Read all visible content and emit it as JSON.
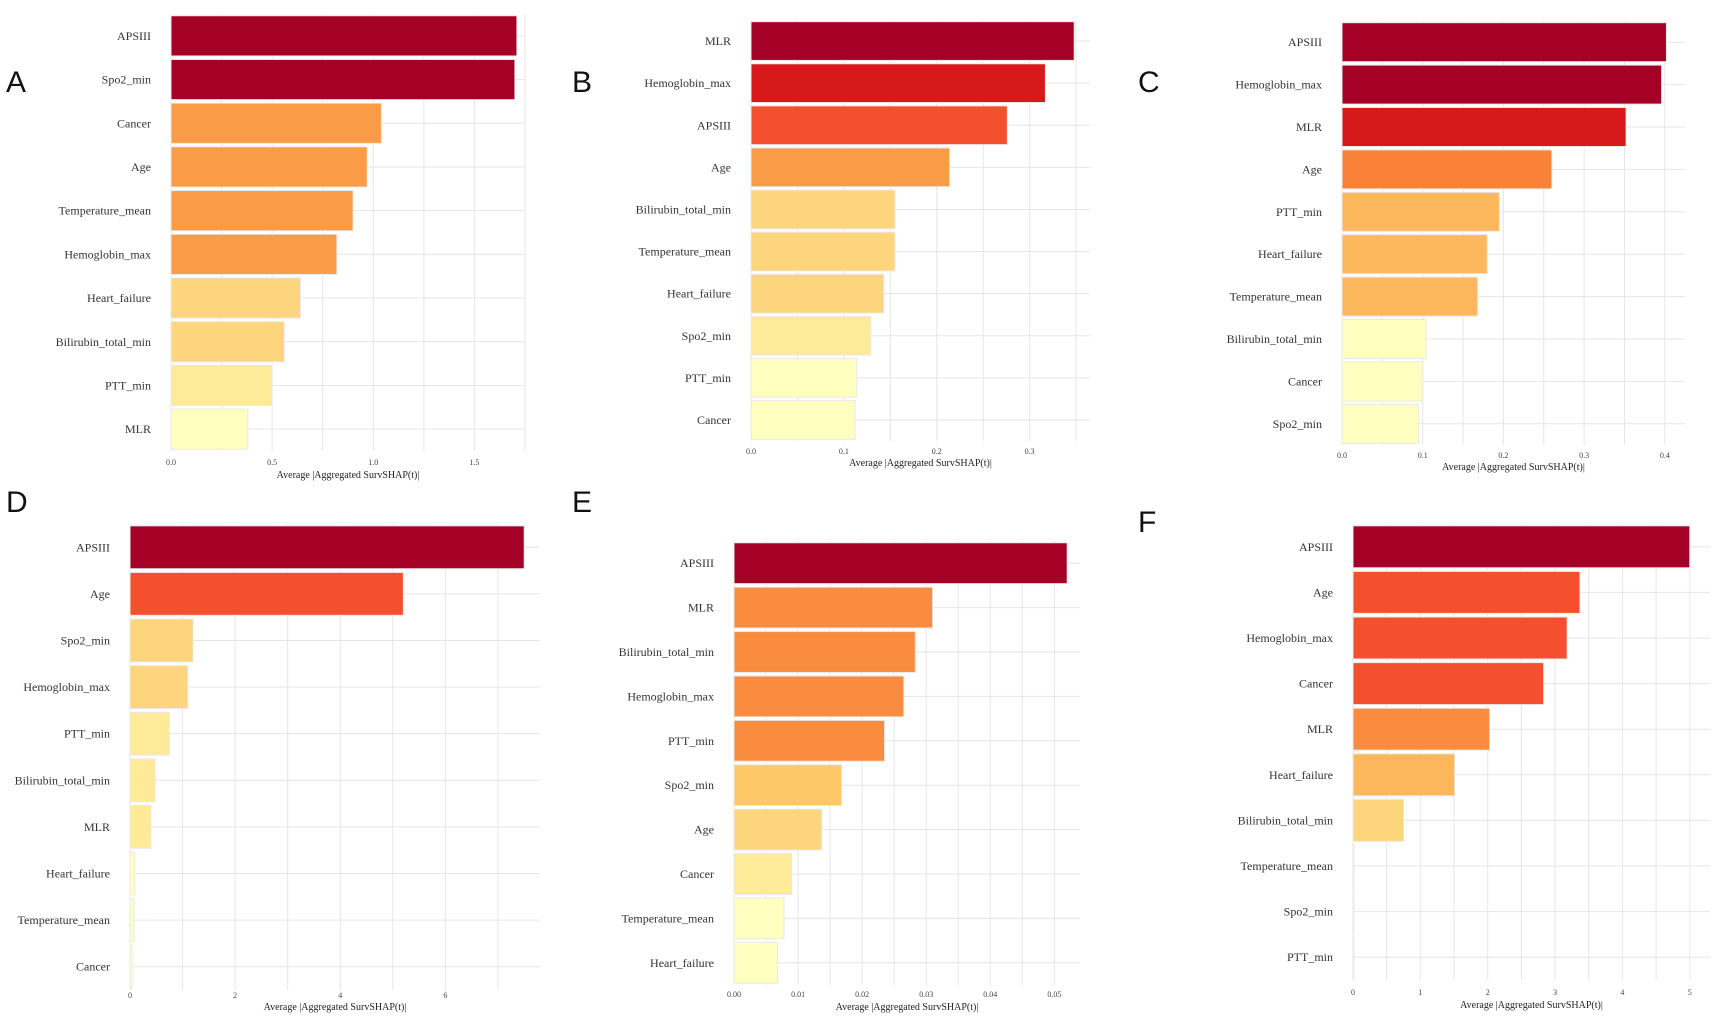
{
  "figure": {
    "panels": [
      "A",
      "B",
      "C",
      "D",
      "E",
      "F"
    ]
  },
  "chart_data": [
    {
      "type": "bar",
      "orientation": "horizontal",
      "panel": "A",
      "categories": [
        "APSIII",
        "Spo2_min",
        "Cancer",
        "Age",
        "Temperature_mean",
        "Hemoglobin_max",
        "Heart_failure",
        "Bilirubin_total_min",
        "PTT_min",
        "MLR"
      ],
      "values": [
        1.71,
        1.7,
        1.04,
        0.97,
        0.9,
        0.82,
        0.64,
        0.56,
        0.5,
        0.38
      ],
      "colors": [
        "#a50026",
        "#a50026",
        "#f99c45",
        "#f99c45",
        "#f99c45",
        "#f99c45",
        "#fdd57c",
        "#fdd57c",
        "#feea98",
        "#ffffbf"
      ],
      "xticks": [
        0.0,
        0.5,
        1.0,
        1.5
      ],
      "xtick_labels": [
        "0.0",
        "0.5",
        "1.0",
        "1.5"
      ],
      "xlim": [
        0,
        1.75
      ],
      "xlabel": "Average |Aggregated SurvSHAP(t)|",
      "ylabel": "",
      "grid": true
    },
    {
      "type": "bar",
      "orientation": "horizontal",
      "panel": "B",
      "categories": [
        "MLR",
        "Hemoglobin_max",
        "APSIII",
        "Age",
        "Bilirubin_total_min",
        "Temperature_mean",
        "Heart_failure",
        "Spo2_min",
        "PTT_min",
        "Cancer"
      ],
      "values": [
        0.348,
        0.317,
        0.276,
        0.214,
        0.155,
        0.155,
        0.143,
        0.129,
        0.114,
        0.112
      ],
      "colors": [
        "#a50026",
        "#d7191c",
        "#f4502f",
        "#f99c45",
        "#fdd57c",
        "#fdd57c",
        "#fdd57c",
        "#feea98",
        "#ffffbf",
        "#ffffbf"
      ],
      "xticks": [
        0.0,
        0.1,
        0.2,
        0.3
      ],
      "xtick_labels": [
        "0.0",
        "0.1",
        "0.2",
        "0.3"
      ],
      "xlim": [
        0,
        0.365
      ],
      "xlabel": "Average |Aggregated SurvSHAP(t)|",
      "ylabel": "",
      "grid": true
    },
    {
      "type": "bar",
      "orientation": "horizontal",
      "panel": "C",
      "categories": [
        "APSIII",
        "Hemoglobin_max",
        "MLR",
        "Age",
        "PTT_min",
        "Heart_failure",
        "Temperature_mean",
        "Bilirubin_total_min",
        "Cancer",
        "Spo2_min"
      ],
      "values": [
        0.402,
        0.396,
        0.352,
        0.26,
        0.195,
        0.18,
        0.168,
        0.104,
        0.1,
        0.095
      ],
      "colors": [
        "#a50026",
        "#a50026",
        "#d7191c",
        "#f98238",
        "#fdb75c",
        "#fdb75c",
        "#fdb75c",
        "#ffffbf",
        "#ffffbf",
        "#ffffbf"
      ],
      "xticks": [
        0.0,
        0.1,
        0.2,
        0.3,
        0.4
      ],
      "xtick_labels": [
        "0.0",
        "0.1",
        "0.2",
        "0.3",
        "0.4"
      ],
      "xlim": [
        0,
        0.425
      ],
      "xlabel": "Average |Aggregated SurvSHAP(t)|",
      "ylabel": "",
      "grid": true
    },
    {
      "type": "bar",
      "orientation": "horizontal",
      "panel": "D",
      "categories": [
        "APSIII",
        "Age",
        "Spo2_min",
        "Hemoglobin_max",
        "PTT_min",
        "Bilirubin_total_min",
        "MLR",
        "Heart_failure",
        "Temperature_mean",
        "Cancer"
      ],
      "values": [
        7.5,
        5.2,
        1.2,
        1.1,
        0.75,
        0.48,
        0.4,
        0.09,
        0.08,
        0.04
      ],
      "colors": [
        "#a50026",
        "#f4502f",
        "#fdd57c",
        "#fdd57c",
        "#feea98",
        "#feea98",
        "#feea98",
        "#ffffbf",
        "#ffffbf",
        "#ffffbf"
      ],
      "xticks": [
        0,
        2,
        4,
        6
      ],
      "xtick_labels": [
        "0",
        "2",
        "4",
        "6"
      ],
      "xlim": [
        0,
        7.8
      ],
      "xlabel": "Average |Aggregated SurvSHAP(t)|",
      "ylabel": "",
      "grid": true
    },
    {
      "type": "bar",
      "orientation": "horizontal",
      "panel": "E",
      "categories": [
        "APSIII",
        "MLR",
        "Bilirubin_total_min",
        "Hemoglobin_max",
        "PTT_min",
        "Spo2_min",
        "Age",
        "Cancer",
        "Temperature_mean",
        "Heart_failure"
      ],
      "values": [
        0.052,
        0.031,
        0.0283,
        0.0265,
        0.0235,
        0.0168,
        0.0137,
        0.009,
        0.0078,
        0.0068
      ],
      "colors": [
        "#a50026",
        "#f98c3f",
        "#f98c3f",
        "#f98c3f",
        "#f98c3f",
        "#fdc968",
        "#fdd57c",
        "#feea98",
        "#ffffbf",
        "#ffffbf"
      ],
      "xticks": [
        0.0,
        0.01,
        0.02,
        0.03,
        0.04,
        0.05
      ],
      "xtick_labels": [
        "0.00",
        "0.01",
        "0.02",
        "0.03",
        "0.04",
        "0.05"
      ],
      "xlim": [
        0,
        0.054
      ],
      "xlabel": "Average |Aggregated SurvSHAP(t)|",
      "ylabel": "",
      "grid": true
    },
    {
      "type": "bar",
      "orientation": "horizontal",
      "panel": "F",
      "categories": [
        "APSIII",
        "Age",
        "Hemoglobin_max",
        "Cancer",
        "MLR",
        "Heart_failure",
        "Bilirubin_total_min",
        "Temperature_mean",
        "Spo2_min",
        "PTT_min"
      ],
      "values": [
        5.0,
        3.37,
        3.18,
        2.83,
        2.03,
        1.51,
        0.75,
        0.0,
        0.0,
        0.0
      ],
      "colors": [
        "#a50026",
        "#f4502f",
        "#f4502f",
        "#f4502f",
        "#f98c3f",
        "#fdb75c",
        "#fdd57c",
        "#fdd57c",
        "#fdd57c",
        "#fdd57c"
      ],
      "xticks": [
        0,
        1,
        2,
        3,
        4,
        5
      ],
      "xtick_labels": [
        "0",
        "1",
        "2",
        "3",
        "4",
        "5"
      ],
      "xlim": [
        0,
        5.3
      ],
      "xlabel": "Average |Aggregated SurvSHAP(t)|",
      "ylabel": "",
      "grid": true
    }
  ]
}
